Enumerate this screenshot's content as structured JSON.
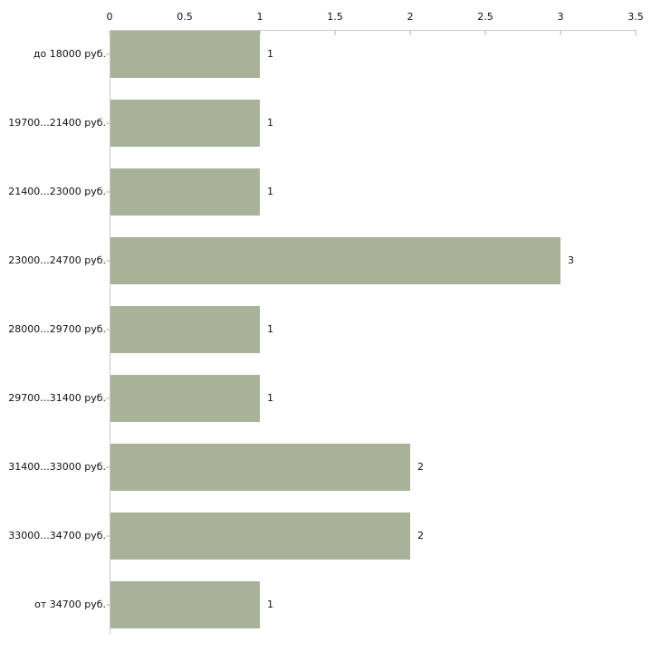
{
  "chart_data": {
    "type": "bar",
    "orientation": "horizontal",
    "title": "",
    "xlabel": "",
    "ylabel": "",
    "categories": [
      "до 18000 руб.",
      "19700...21400 руб.",
      "21400...23000 руб.",
      "23000...24700 руб.",
      "28000...29700 руб.",
      "29700...31400 руб.",
      "31400...33000 руб.",
      "33000...34700 руб.",
      "от 34700 руб."
    ],
    "values": [
      1,
      1,
      1,
      3,
      1,
      1,
      2,
      2,
      1
    ],
    "value_labels": [
      "1",
      "1",
      "1",
      "3",
      "1",
      "1",
      "2",
      "2",
      "1"
    ],
    "x_tick_labels": [
      "0",
      "0.5",
      "1",
      "1.5",
      "2",
      "2.5",
      "3",
      "3.5"
    ],
    "x_tick_values": [
      0,
      0.5,
      1,
      1.5,
      2,
      2.5,
      3,
      3.5
    ],
    "xlim": [
      0,
      3.5
    ],
    "axis_position": "top",
    "grid": false,
    "legend": false,
    "colors": {
      "bar_fill": "#aab199",
      "axis_line": "#c8c8c8",
      "tick_mark": "#dcdcc4",
      "text": "#111111",
      "background": "#ffffff"
    }
  }
}
